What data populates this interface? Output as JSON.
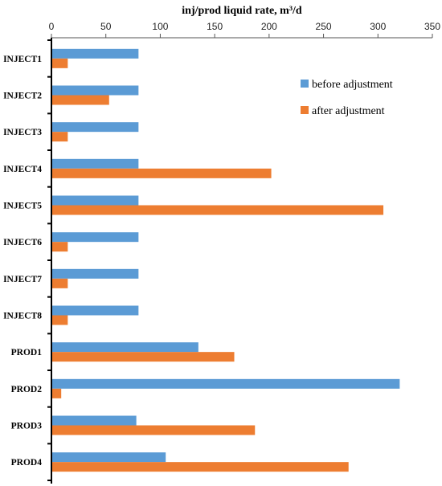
{
  "chart_data": {
    "type": "bar",
    "orientation": "horizontal",
    "title": "",
    "xlabel": "inj/prod liquid rate, m³/d",
    "ylabel": "",
    "xlim": [
      0,
      350
    ],
    "x_ticks": [
      "0",
      "50",
      "100",
      "150",
      "200",
      "250",
      "300",
      "350"
    ],
    "x_axis_position": "top",
    "grid": false,
    "legend_position": "right",
    "categories": [
      "INJECT1",
      "INJECT2",
      "INJECT3",
      "INJECT4",
      "INJECT5",
      "INJECT6",
      "INJECT7",
      "INJECT8",
      "PROD1",
      "PROD2",
      "PROD3",
      "PROD4"
    ],
    "series": [
      {
        "name": "before adjustment",
        "color": "#5B9BD5",
        "values": [
          80,
          80,
          80,
          80,
          80,
          80,
          80,
          80,
          135,
          320,
          78,
          105
        ]
      },
      {
        "name": "after adjustment",
        "color": "#ED7D31",
        "values": [
          15,
          53,
          15,
          202,
          305,
          15,
          15,
          15,
          168,
          9,
          187,
          273
        ]
      }
    ]
  }
}
